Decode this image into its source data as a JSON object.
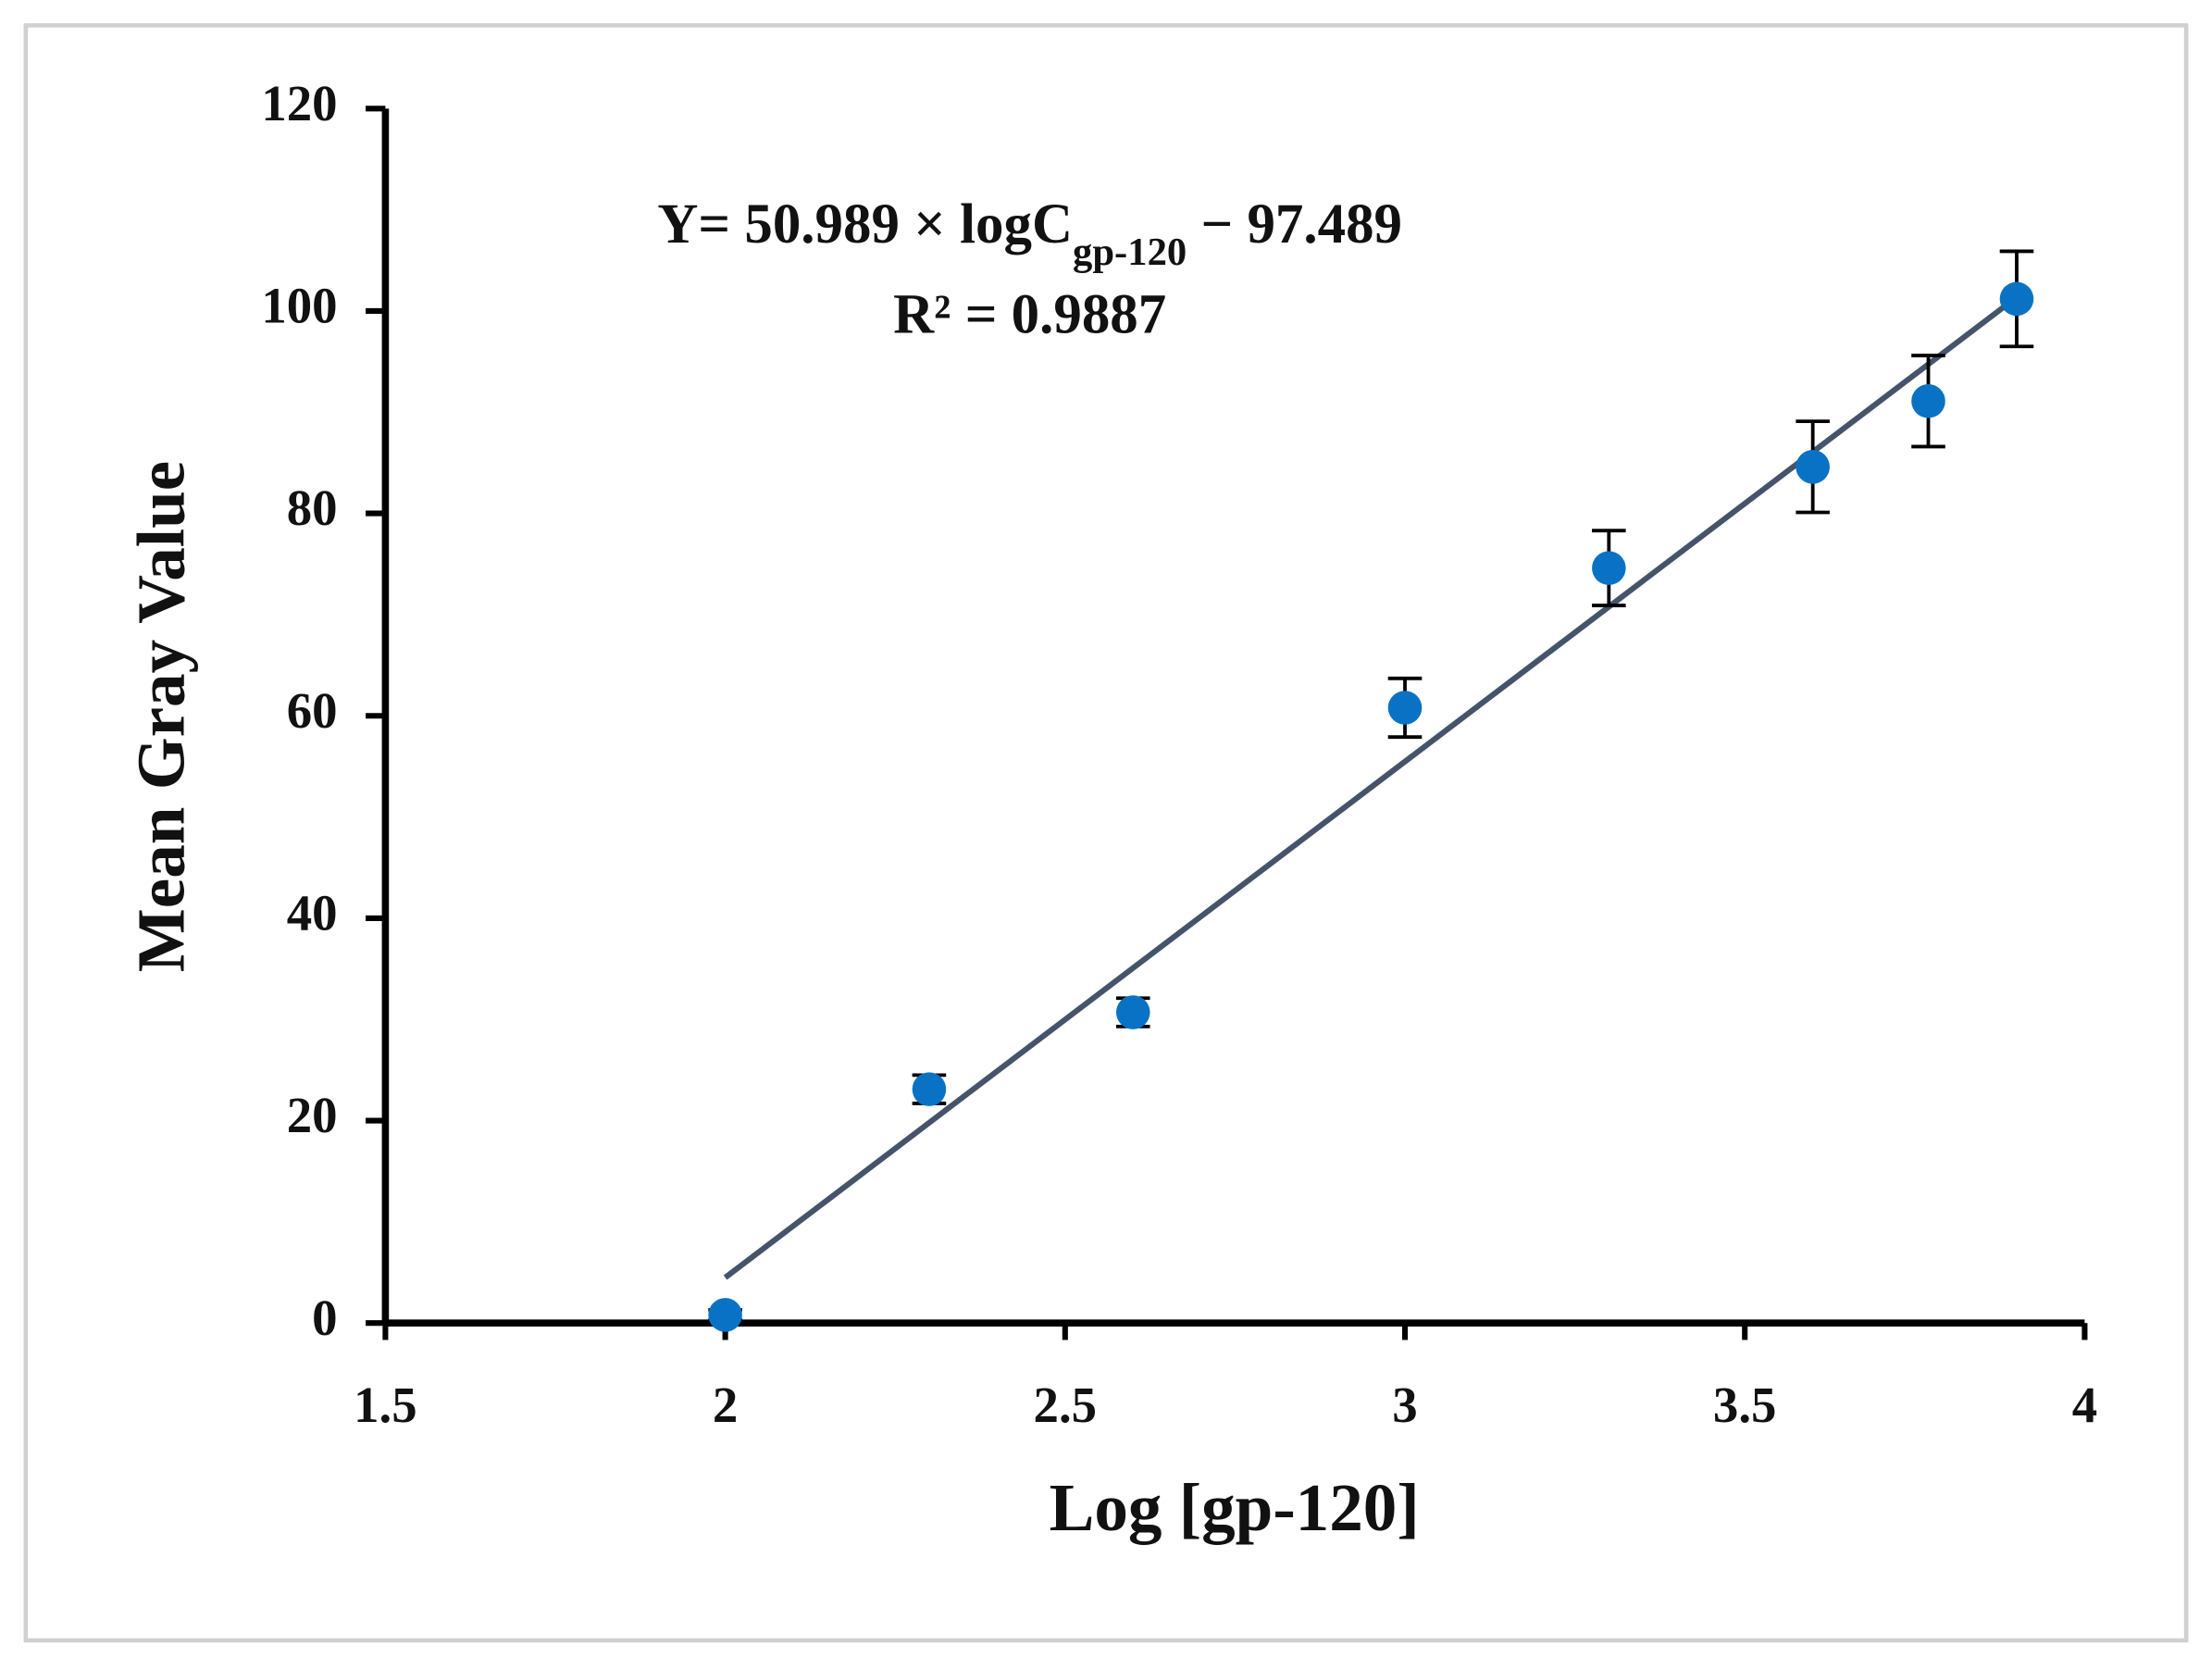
{
  "chart_data": {
    "type": "scatter",
    "x_label": "Log [gp-120]",
    "y_label": "Mean Gray Value",
    "equation_prefix": "Y= 50.989 × logC",
    "equation_subscript": "gp-120",
    "equation_suffix": " − 97.489",
    "r_squared_label": "R² = 0.9887",
    "x": [
      2,
      2.3,
      2.6,
      3,
      3.3,
      3.6,
      3.77,
      3.9
    ],
    "values": [
      0.8,
      23.1,
      30.7,
      60.8,
      74.6,
      84.6,
      91.1,
      101.2
    ],
    "errors": [
      0.5,
      1.4,
      1.4,
      2.9,
      3.7,
      4.5,
      4.5,
      4.7
    ],
    "color": "#0a72c4",
    "trendline": {
      "slope": 50.989,
      "intercept": -97.489,
      "color": "#44546a"
    },
    "xlim": [
      1.5,
      4
    ],
    "xticks": [
      1.5,
      2,
      2.5,
      3,
      3.5,
      4
    ],
    "ylim": [
      0,
      120
    ],
    "yticks": [
      0,
      20,
      40,
      60,
      80,
      100,
      120
    ]
  }
}
